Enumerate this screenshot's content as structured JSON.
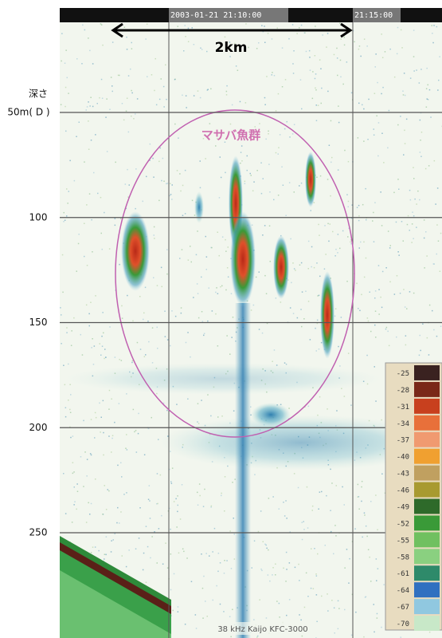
{
  "header": {
    "start_time": "2003-01-21 21:10:00",
    "end_time": "21:15:00"
  },
  "distance_label": "2km",
  "school_label": "マサバ魚群",
  "depth_axis": {
    "title": "深さ",
    "ticks": [
      {
        "value": 50,
        "label": "50m( D )"
      },
      100,
      150,
      200,
      250
    ]
  },
  "footer": "38 kHz Kaijo KFC-3000",
  "color_scale": [
    {
      "value": -25,
      "color": "#3a2220"
    },
    {
      "value": -28,
      "color": "#7a2818"
    },
    {
      "value": -31,
      "color": "#c8401e"
    },
    {
      "value": -34,
      "color": "#e8703a"
    },
    {
      "value": -37,
      "color": "#f09a70"
    },
    {
      "value": -40,
      "color": "#f0a030"
    },
    {
      "value": -43,
      "color": "#c0a060"
    },
    {
      "value": -46,
      "color": "#a89a30"
    },
    {
      "value": -49,
      "color": "#2e6a2a"
    },
    {
      "value": -52,
      "color": "#3a9a38"
    },
    {
      "value": -55,
      "color": "#70c060"
    },
    {
      "value": -58,
      "color": "#8ad080"
    },
    {
      "value": -61,
      "color": "#2e8a6a"
    },
    {
      "value": -64,
      "color": "#3070c0"
    },
    {
      "value": -67,
      "color": "#90c8e0"
    },
    {
      "value": -70,
      "color": "#c8e8c8"
    }
  ]
}
